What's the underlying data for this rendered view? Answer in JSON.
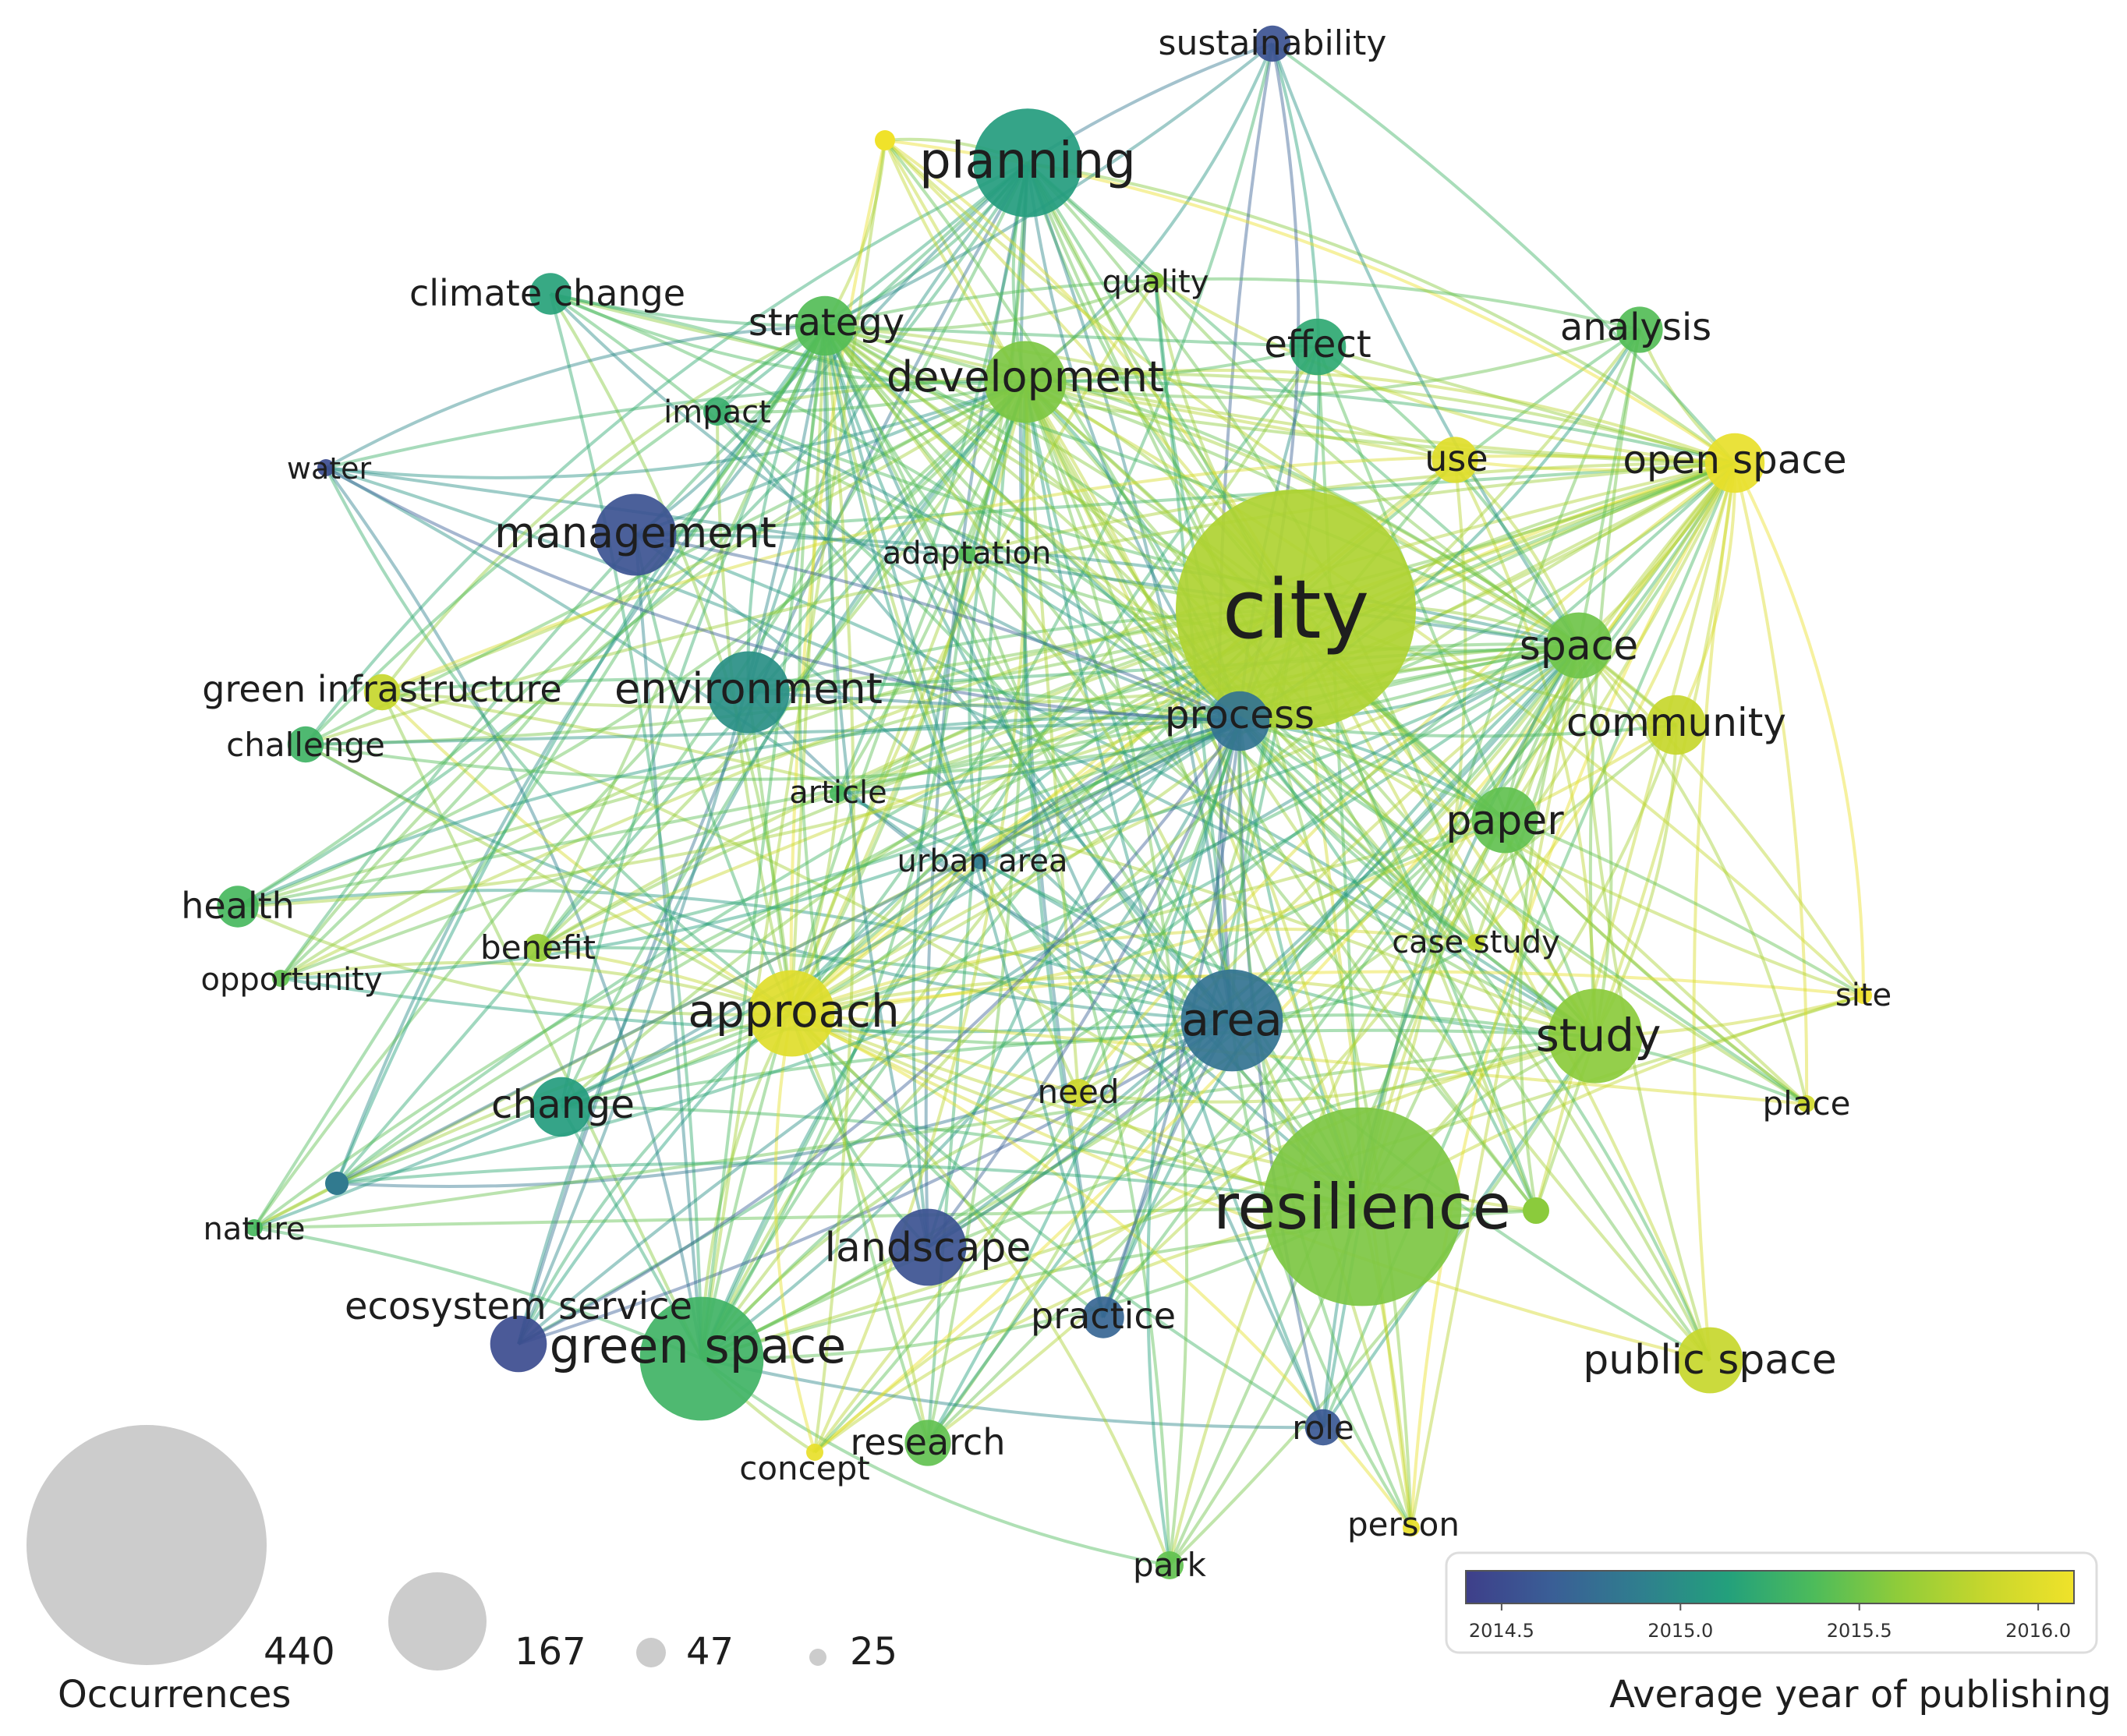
{
  "nodes": [
    {
      "id": "city",
      "label": "city",
      "occurrences": 440,
      "avg_year": 2015.75
    },
    {
      "id": "resilience",
      "label": "resilience",
      "occurrences": 300,
      "avg_year": 2015.55
    },
    {
      "id": "planning",
      "label": "planning",
      "occurrences": 95,
      "avg_year": 2015.1
    },
    {
      "id": "green-space",
      "label": "green space",
      "occurrences": 120,
      "avg_year": 2015.3
    },
    {
      "id": "area",
      "label": "area",
      "occurrences": 85,
      "avg_year": 2014.8
    },
    {
      "id": "study",
      "label": "study",
      "occurrences": 75,
      "avg_year": 2015.6
    },
    {
      "id": "approach",
      "label": "approach",
      "occurrences": 65,
      "avg_year": 2016.0
    },
    {
      "id": "management",
      "label": "management",
      "occurrences": 60,
      "avg_year": 2014.55
    },
    {
      "id": "environment",
      "label": "environment",
      "occurrences": 60,
      "avg_year": 2015.0
    },
    {
      "id": "development",
      "label": "development",
      "occurrences": 60,
      "avg_year": 2015.55
    },
    {
      "id": "landscape",
      "label": "landscape",
      "occurrences": 55,
      "avg_year": 2014.55
    },
    {
      "id": "process",
      "label": "process",
      "occurrences": 40,
      "avg_year": 2014.8
    },
    {
      "id": "space",
      "label": "space",
      "occurrences": 45,
      "avg_year": 2015.5
    },
    {
      "id": "paper",
      "label": "paper",
      "occurrences": 45,
      "avg_year": 2015.45
    },
    {
      "id": "public-space",
      "label": "public space",
      "occurrences": 45,
      "avg_year": 2015.85
    },
    {
      "id": "community",
      "label": "community",
      "occurrences": 40,
      "avg_year": 2015.85
    },
    {
      "id": "open-space",
      "label": "open space",
      "occurrences": 40,
      "avg_year": 2016.05
    },
    {
      "id": "change",
      "label": "change",
      "occurrences": 40,
      "avg_year": 2015.1
    },
    {
      "id": "strategy",
      "label": "strategy",
      "occurrences": 40,
      "avg_year": 2015.4
    },
    {
      "id": "effect",
      "label": "effect",
      "occurrences": 38,
      "avg_year": 2015.2
    },
    {
      "id": "ecosystem-service",
      "label": "ecosystem service",
      "occurrences": 38,
      "avg_year": 2014.5
    },
    {
      "id": "analysis",
      "label": "analysis",
      "occurrences": 32,
      "avg_year": 2015.4
    },
    {
      "id": "research",
      "label": "research",
      "occurrences": 32,
      "avg_year": 2015.45
    },
    {
      "id": "use",
      "label": "use",
      "occurrences": 32,
      "avg_year": 2016.0
    },
    {
      "id": "practice",
      "label": "practice",
      "occurrences": 30,
      "avg_year": 2014.7
    },
    {
      "id": "climate-change",
      "label": "climate change",
      "occurrences": 30,
      "avg_year": 2015.15
    },
    {
      "id": "health",
      "label": "health",
      "occurrences": 30,
      "avg_year": 2015.35
    },
    {
      "id": "green-infrastructure",
      "label": "green infrastructure",
      "occurrences": 28,
      "avg_year": 2015.85
    },
    {
      "id": "challenge",
      "label": "challenge",
      "occurrences": 28,
      "avg_year": 2015.3
    },
    {
      "id": "role",
      "label": "role",
      "occurrences": 28,
      "avg_year": 2014.6
    },
    {
      "id": "sustainability",
      "label": "sustainability",
      "occurrences": 28,
      "avg_year": 2014.55
    },
    {
      "id": "park",
      "label": "park",
      "occurrences": 26,
      "avg_year": 2015.45
    },
    {
      "id": "impact",
      "label": "impact",
      "occurrences": 26,
      "avg_year": 2015.25
    },
    {
      "id": "need",
      "label": "need",
      "occurrences": 26,
      "avg_year": 2015.9
    },
    {
      "id": "benefit",
      "label": "benefit",
      "occurrences": 26,
      "avg_year": 2015.65
    },
    {
      "id": "concept",
      "label": "concept",
      "occurrences": 25,
      "avg_year": 2016.05
    },
    {
      "id": "person",
      "label": "person",
      "occurrences": 25,
      "avg_year": 2016.05
    },
    {
      "id": "site",
      "label": "site",
      "occurrences": 25,
      "avg_year": 2016.1
    },
    {
      "id": "place",
      "label": "place",
      "occurrences": 25,
      "avg_year": 2015.9
    },
    {
      "id": "nature",
      "label": "nature",
      "occurrences": 25,
      "avg_year": 2015.35
    },
    {
      "id": "opportunity",
      "label": "opportunity",
      "occurrences": 25,
      "avg_year": 2015.45
    },
    {
      "id": "water",
      "label": "water",
      "occurrences": 25,
      "avg_year": 2014.5
    },
    {
      "id": "quality",
      "label": "quality",
      "occurrences": 25,
      "avg_year": 2015.6
    },
    {
      "id": "adaptation",
      "label": "adaptation",
      "occurrences": 25,
      "avg_year": 2015.4
    },
    {
      "id": "article",
      "label": "article",
      "occurrences": 25,
      "avg_year": 2015.35
    },
    {
      "id": "urban-area",
      "label": "urban area",
      "occurrences": 25,
      "avg_year": 2014.85
    },
    {
      "id": "case-study",
      "label": "case study",
      "occurrences": 25,
      "avg_year": 2015.85
    }
  ],
  "legend": {
    "size_title": "Occurrences",
    "size_values": [
      "440",
      "167",
      "47",
      "25"
    ],
    "color_title": "Average year of publishing",
    "color_ticks": [
      "2014.5",
      "2015.0",
      "2015.5",
      "2016.0"
    ],
    "color_range": [
      2014.4,
      2016.1
    ]
  },
  "colors": {
    "scale": [
      "#3e3f8a",
      "#3a5e96",
      "#2f7f8e",
      "#23a07c",
      "#4cbb5b",
      "#8fcc3a",
      "#c9d72c",
      "#f0e22a"
    ],
    "label": "#1e1e1e",
    "legend_circle": "#cccccc"
  }
}
